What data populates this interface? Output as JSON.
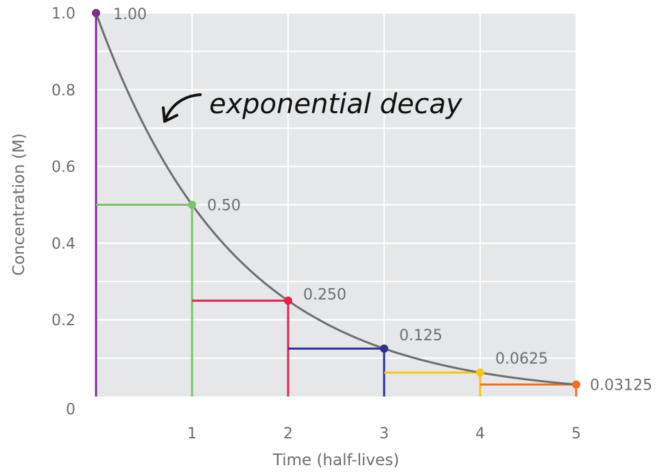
{
  "chart_data": {
    "type": "line",
    "title": "",
    "xlabel": "Time (half-lives)",
    "ylabel": "Concentration (M)",
    "xlim": [
      0,
      5
    ],
    "ylim": [
      0,
      1.0
    ],
    "x_ticks": [
      1,
      2,
      3,
      4,
      5
    ],
    "x_tick_labels": [
      "1",
      "2",
      "3",
      "4",
      "5"
    ],
    "y_ticks": [
      0,
      0.2,
      0.4,
      0.6,
      0.8,
      1.0
    ],
    "y_tick_labels": [
      "0",
      "0.2",
      "0.4",
      "0.6",
      "0.8",
      "1.0"
    ],
    "y_minor_ticks": [
      0.1,
      0.3,
      0.5,
      0.7,
      0.9
    ],
    "grid": true,
    "curve": {
      "label": "exponential decay",
      "function": "0.5^x",
      "color": "#6d6e71"
    },
    "points": [
      {
        "x": 0,
        "y": 1.0,
        "label": "1.00",
        "color": "#7b2d8e"
      },
      {
        "x": 1,
        "y": 0.5,
        "label": "0.50",
        "color": "#7dc36b"
      },
      {
        "x": 2,
        "y": 0.25,
        "label": "0.250",
        "color": "#e8204a"
      },
      {
        "x": 3,
        "y": 0.125,
        "label": "0.125",
        "color": "#2e3192"
      },
      {
        "x": 4,
        "y": 0.0625,
        "label": "0.0625",
        "color": "#f7c614"
      },
      {
        "x": 5,
        "y": 0.03125,
        "label": "0.03125",
        "color": "#f26f21"
      }
    ],
    "annotation": "exponential decay",
    "colors": {
      "plot_background": "#e6e7e8",
      "grid": "#ffffff",
      "text": "#6d6e71"
    }
  }
}
